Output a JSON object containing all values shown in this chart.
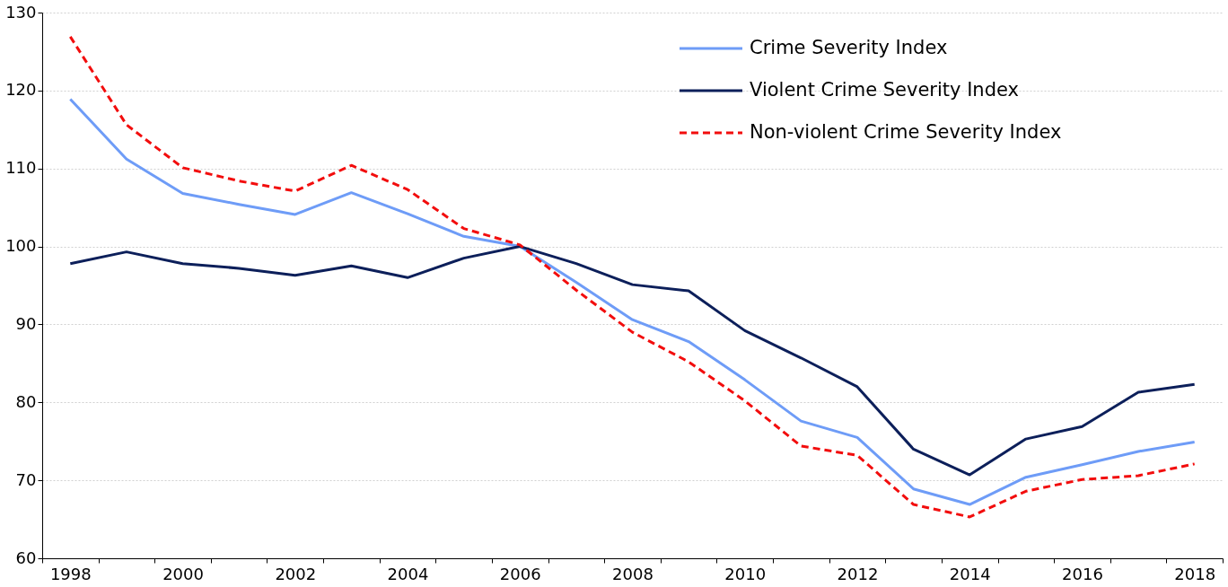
{
  "chart_data": {
    "type": "line",
    "categories": [
      "1998",
      null,
      "2000",
      null,
      "2002",
      null,
      "2004",
      null,
      "2006",
      null,
      "2008",
      null,
      "2010",
      null,
      "2012",
      null,
      "2014",
      null,
      "2016",
      null,
      "2018"
    ],
    "series": [
      {
        "name": "Crime Severity Index",
        "color": "#6e9cf7",
        "line_style": "solid",
        "values": [
          118.9,
          111.2,
          106.8,
          105.4,
          104.1,
          106.9,
          104.2,
          101.3,
          100.0,
          95.4,
          90.6,
          87.8,
          82.9,
          77.6,
          75.5,
          68.9,
          66.9,
          70.4,
          72.0,
          73.7,
          74.9
        ]
      },
      {
        "name": "Violent Crime Severity Index",
        "color": "#0c1f5a",
        "line_style": "solid",
        "values": [
          97.8,
          99.3,
          97.8,
          97.2,
          96.3,
          97.5,
          96.0,
          98.5,
          100.0,
          97.8,
          95.1,
          94.3,
          89.2,
          85.7,
          82.0,
          74.0,
          70.7,
          75.3,
          76.9,
          81.3,
          82.3
        ]
      },
      {
        "name": "Non-violent Crime Severity Index",
        "color": "#f20d0d",
        "line_style": "dashed",
        "values": [
          126.9,
          115.6,
          110.1,
          108.4,
          107.1,
          110.4,
          107.3,
          102.3,
          100.2,
          94.4,
          89.0,
          85.2,
          80.2,
          74.4,
          73.2,
          66.9,
          65.3,
          68.6,
          70.1,
          70.6,
          72.1
        ]
      }
    ],
    "ylim": [
      60,
      130
    ],
    "yticks": [
      60,
      70,
      80,
      90,
      100,
      110,
      120,
      130
    ],
    "grid": "y",
    "legend": "top right",
    "marker": "none"
  }
}
